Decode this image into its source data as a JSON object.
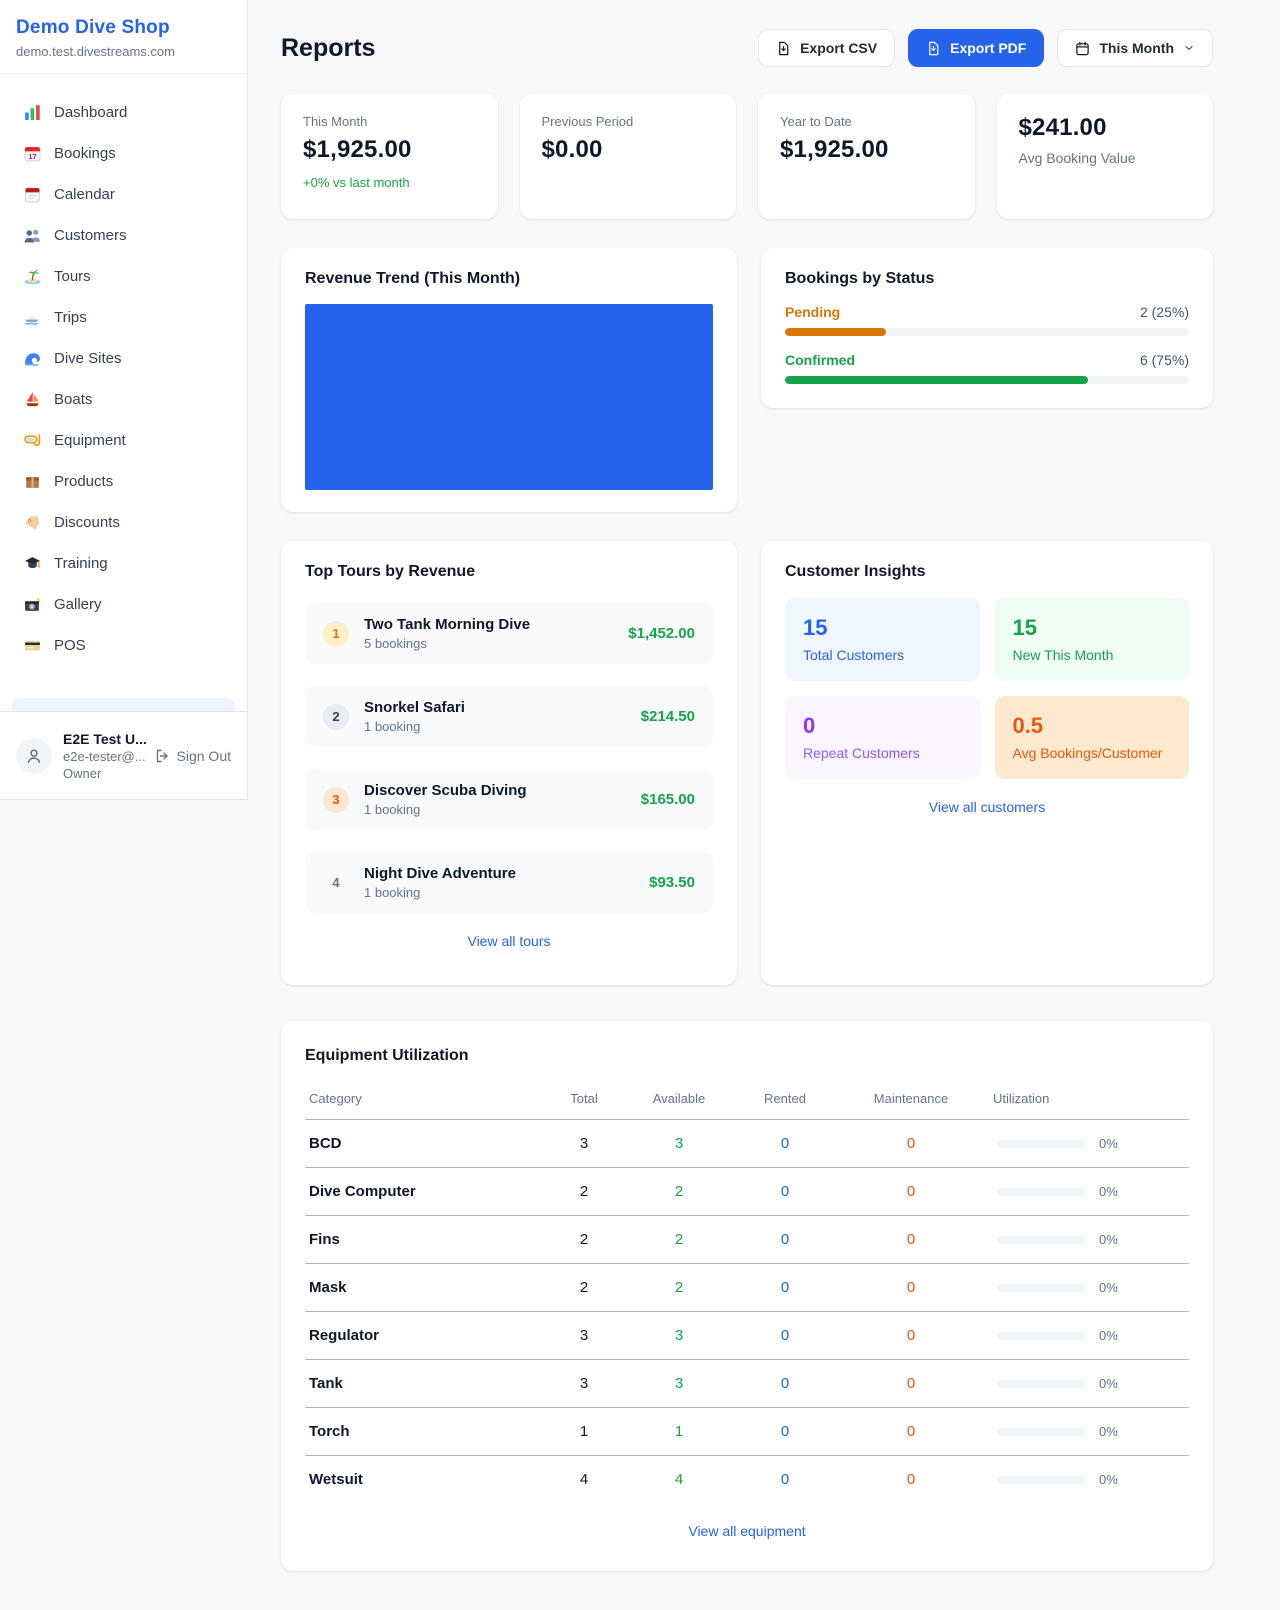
{
  "colors": {
    "accent_blue": "#2563eb",
    "green": "#16a34a",
    "pending_orange": "#d97706",
    "maintenance_orange": "#ea580c",
    "purple": "#9333ea",
    "revenue_bar": "#2563eb"
  },
  "sidebar": {
    "shop_name": "Demo Dive Shop",
    "domain": "demo.test.divestreams.com",
    "items": [
      {
        "label": "Dashboard",
        "icon": "bar-chart-icon"
      },
      {
        "label": "Bookings",
        "icon": "calendar-date-icon"
      },
      {
        "label": "Calendar",
        "icon": "tear-off-calendar-icon"
      },
      {
        "label": "Customers",
        "icon": "people-icon"
      },
      {
        "label": "Tours",
        "icon": "island-icon"
      },
      {
        "label": "Trips",
        "icon": "speedboat-icon"
      },
      {
        "label": "Dive Sites",
        "icon": "wave-icon"
      },
      {
        "label": "Boats",
        "icon": "sailboat-icon"
      },
      {
        "label": "Equipment",
        "icon": "diving-mask-icon"
      },
      {
        "label": "Products",
        "icon": "package-icon"
      },
      {
        "label": "Discounts",
        "icon": "label-tag-icon"
      },
      {
        "label": "Training",
        "icon": "graduation-cap-icon"
      },
      {
        "label": "Gallery",
        "icon": "camera-icon"
      },
      {
        "label": "POS",
        "icon": "credit-card-icon"
      }
    ],
    "user": {
      "name": "E2E Test U...",
      "email": "e2e-tester@...",
      "role": "Owner",
      "sign_out_label": "Sign Out"
    }
  },
  "header": {
    "title": "Reports",
    "export_csv_label": "Export CSV",
    "export_pdf_label": "Export PDF",
    "period_label": "This Month"
  },
  "stats": [
    {
      "label": "This Month",
      "value": "$1,925.00",
      "note": "+0% vs last month"
    },
    {
      "label": "Previous Period",
      "value": "$0.00"
    },
    {
      "label": "Year to Date",
      "value": "$1,925.00"
    },
    {
      "label": "Avg Booking Value",
      "value": "$241.00"
    }
  ],
  "chart_data": {
    "type": "bar",
    "title": "Revenue Trend (This Month)",
    "note_visible_content": "single solid blue bar filling the whole plot area, no axes or labels shown",
    "bar_color": "#2563eb"
  },
  "bookings_by_status": {
    "title": "Bookings by Status",
    "rows": [
      {
        "label": "Pending",
        "value": "2 (25%)",
        "pct": 25
      },
      {
        "label": "Confirmed",
        "value": "6 (75%)",
        "pct": 75
      }
    ]
  },
  "top_tours": {
    "title": "Top Tours by Revenue",
    "rows": [
      {
        "rank": "1",
        "name": "Two Tank Morning Dive",
        "bookings": "5 bookings",
        "amount": "$1,452.00"
      },
      {
        "rank": "2",
        "name": "Snorkel Safari",
        "bookings": "1 booking",
        "amount": "$214.50"
      },
      {
        "rank": "3",
        "name": "Discover Scuba Diving",
        "bookings": "1 booking",
        "amount": "$165.00"
      },
      {
        "rank": "4",
        "name": "Night Dive Adventure",
        "bookings": "1 booking",
        "amount": "$93.50"
      }
    ],
    "view_all_label": "View all tours"
  },
  "customer_insights": {
    "title": "Customer Insights",
    "tiles": [
      {
        "value": "15",
        "label": "Total Customers"
      },
      {
        "value": "15",
        "label": "New This Month"
      },
      {
        "value": "0",
        "label": "Repeat Customers"
      },
      {
        "value": "0.5",
        "label": "Avg Bookings/Customer"
      }
    ],
    "view_all_label": "View all customers"
  },
  "equipment": {
    "title": "Equipment Utilization",
    "columns": [
      "Category",
      "Total",
      "Available",
      "Rented",
      "Maintenance",
      "Utilization"
    ],
    "rows": [
      {
        "category": "BCD",
        "total": "3",
        "available": "3",
        "rented": "0",
        "maintenance": "0",
        "utilization": "0%",
        "utilization_pct": 0
      },
      {
        "category": "Dive Computer",
        "total": "2",
        "available": "2",
        "rented": "0",
        "maintenance": "0",
        "utilization": "0%",
        "utilization_pct": 0
      },
      {
        "category": "Fins",
        "total": "2",
        "available": "2",
        "rented": "0",
        "maintenance": "0",
        "utilization": "0%",
        "utilization_pct": 0
      },
      {
        "category": "Mask",
        "total": "2",
        "available": "2",
        "rented": "0",
        "maintenance": "0",
        "utilization": "0%",
        "utilization_pct": 0
      },
      {
        "category": "Regulator",
        "total": "3",
        "available": "3",
        "rented": "0",
        "maintenance": "0",
        "utilization": "0%",
        "utilization_pct": 0
      },
      {
        "category": "Tank",
        "total": "3",
        "available": "3",
        "rented": "0",
        "maintenance": "0",
        "utilization": "0%",
        "utilization_pct": 0
      },
      {
        "category": "Torch",
        "total": "1",
        "available": "1",
        "rented": "0",
        "maintenance": "0",
        "utilization": "0%",
        "utilization_pct": 0
      },
      {
        "category": "Wetsuit",
        "total": "4",
        "available": "4",
        "rented": "0",
        "maintenance": "0",
        "utilization": "0%",
        "utilization_pct": 0
      }
    ],
    "view_all_label": "View all equipment"
  }
}
